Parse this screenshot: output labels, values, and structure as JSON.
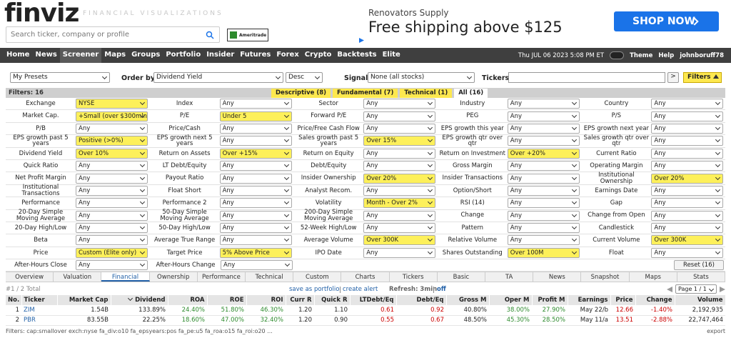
{
  "header": {
    "logo": "finviz",
    "tagline": "FINANCIAL VISUALIZATIONS",
    "search_placeholder": "Search ticker, company or profile",
    "badge": "Ameritrade"
  },
  "ad": {
    "advertiser": "Renovators Supply",
    "headline": "Free shipping above $125",
    "button": "SHOP NOW"
  },
  "nav": {
    "items": [
      {
        "label": "Home"
      },
      {
        "label": "News"
      },
      {
        "label": "Screener",
        "active": true
      },
      {
        "label": "Maps"
      },
      {
        "label": "Groups"
      },
      {
        "label": "Portfolio"
      },
      {
        "label": "Insider"
      },
      {
        "label": "Futures"
      },
      {
        "label": "Forex"
      },
      {
        "label": "Crypto"
      },
      {
        "label": "Backtests"
      },
      {
        "label": "Elite"
      }
    ],
    "datetime": "Thu JUL 06 2023 5:08 PM ET",
    "theme": "Theme",
    "help": "Help",
    "user": "johnboruff78"
  },
  "controls": {
    "presets": "My Presets",
    "order_by_label": "Order by",
    "order_by": "Dividend Yield",
    "direction": "Desc",
    "signal_label": "Signal",
    "signal": "None (all stocks)",
    "tickers_label": "Tickers",
    "go": ">",
    "filters_button": "Filters"
  },
  "filter_bar": {
    "count": "Filters: 16",
    "tabs": [
      {
        "label": "Descriptive (8)",
        "highlight": true
      },
      {
        "label": "Fundamental (7)",
        "highlight": true
      },
      {
        "label": "Technical (1)",
        "highlight": true
      },
      {
        "label": "All (16)",
        "selected": true
      }
    ]
  },
  "filters": {
    "rows": [
      [
        {
          "label": "Exchange",
          "value": "NYSE",
          "active": true
        },
        {
          "label": "Index",
          "value": "Any"
        },
        {
          "label": "Sector",
          "value": "Any"
        },
        {
          "label": "Industry",
          "value": "Any"
        },
        {
          "label": "Country",
          "value": "Any"
        }
      ],
      [
        {
          "label": "Market Cap.",
          "value": "+Small (over $300mln)",
          "active": true
        },
        {
          "label": "P/E",
          "value": "Under 5",
          "active": true
        },
        {
          "label": "Forward P/E",
          "value": "Any"
        },
        {
          "label": "PEG",
          "value": "Any"
        },
        {
          "label": "P/S",
          "value": "Any"
        }
      ],
      [
        {
          "label": "P/B",
          "value": "Any"
        },
        {
          "label": "Price/Cash",
          "value": "Any"
        },
        {
          "label": "Price/Free Cash Flow",
          "value": "Any"
        },
        {
          "label": "EPS growth this year",
          "value": "Any"
        },
        {
          "label": "EPS growth next year",
          "value": "Any"
        }
      ],
      [
        {
          "label": "EPS growth past 5 years",
          "value": "Positive (>0%)",
          "active": true
        },
        {
          "label": "EPS growth next 5 years",
          "value": "Any"
        },
        {
          "label": "Sales growth past 5 years",
          "value": "Over 15%",
          "active": true
        },
        {
          "label": "EPS growth qtr over qtr",
          "value": "Any"
        },
        {
          "label": "Sales growth qtr over qtr",
          "value": "Any"
        }
      ],
      [
        {
          "label": "Dividend Yield",
          "value": "Over 10%",
          "active": true
        },
        {
          "label": "Return on Assets",
          "value": "Over +15%",
          "active": true
        },
        {
          "label": "Return on Equity",
          "value": "Any"
        },
        {
          "label": "Return on Investment",
          "value": "Over +20%",
          "active": true
        },
        {
          "label": "Current Ratio",
          "value": "Any"
        }
      ],
      [
        {
          "label": "Quick Ratio",
          "value": "Any"
        },
        {
          "label": "LT Debt/Equity",
          "value": "Any"
        },
        {
          "label": "Debt/Equity",
          "value": "Any"
        },
        {
          "label": "Gross Margin",
          "value": "Any"
        },
        {
          "label": "Operating Margin",
          "value": "Any"
        }
      ],
      [
        {
          "label": "Net Profit Margin",
          "value": "Any"
        },
        {
          "label": "Payout Ratio",
          "value": "Any"
        },
        {
          "label": "Insider Ownership",
          "value": "Over 20%",
          "active": true
        },
        {
          "label": "Insider Transactions",
          "value": "Any"
        },
        {
          "label": "Institutional Ownership",
          "value": "Over 20%",
          "active": true
        }
      ],
      [
        {
          "label": "Institutional Transactions",
          "value": "Any"
        },
        {
          "label": "Float Short",
          "value": "Any"
        },
        {
          "label": "Analyst Recom.",
          "value": "Any"
        },
        {
          "label": "Option/Short",
          "value": "Any"
        },
        {
          "label": "Earnings Date",
          "value": "Any"
        }
      ],
      [
        {
          "label": "Performance",
          "value": "Any"
        },
        {
          "label": "Performance 2",
          "value": "Any"
        },
        {
          "label": "Volatility",
          "value": "Month - Over 2%",
          "active": true
        },
        {
          "label": "RSI (14)",
          "value": "Any"
        },
        {
          "label": "Gap",
          "value": "Any"
        }
      ],
      [
        {
          "label": "20-Day Simple Moving Average",
          "value": "Any"
        },
        {
          "label": "50-Day Simple Moving Average",
          "value": "Any"
        },
        {
          "label": "200-Day Simple Moving Average",
          "value": "Any"
        },
        {
          "label": "Change",
          "value": "Any"
        },
        {
          "label": "Change from Open",
          "value": "Any"
        }
      ],
      [
        {
          "label": "20-Day High/Low",
          "value": "Any"
        },
        {
          "label": "50-Day High/Low",
          "value": "Any"
        },
        {
          "label": "52-Week High/Low",
          "value": "Any"
        },
        {
          "label": "Pattern",
          "value": "Any"
        },
        {
          "label": "Candlestick",
          "value": "Any"
        }
      ],
      [
        {
          "label": "Beta",
          "value": "Any"
        },
        {
          "label": "Average True Range",
          "value": "Any"
        },
        {
          "label": "Average Volume",
          "value": "Over 300K",
          "active": true
        },
        {
          "label": "Relative Volume",
          "value": "Any"
        },
        {
          "label": "Current Volume",
          "value": "Over 300K",
          "active": true
        }
      ],
      [
        {
          "label": "Price",
          "value": "Custom (Elite only)",
          "active": true
        },
        {
          "label": "Target Price",
          "value": "5% Above Price",
          "active": true
        },
        {
          "label": "IPO Date",
          "value": "Any"
        },
        {
          "label": "Shares Outstanding",
          "value": "Over 100M",
          "active": true
        },
        {
          "label": "Float",
          "value": "Any"
        }
      ],
      [
        {
          "label": "After-Hours Close",
          "value": "Any"
        },
        {
          "label": "After-Hours Change",
          "value": "Any"
        }
      ]
    ],
    "reset": "Reset (16)"
  },
  "views": [
    {
      "label": "Overview"
    },
    {
      "label": "Valuation"
    },
    {
      "label": "Financial",
      "active": true
    },
    {
      "label": "Ownership"
    },
    {
      "label": "Performance"
    },
    {
      "label": "Technical"
    },
    {
      "label": "Custom"
    },
    {
      "label": "Charts"
    },
    {
      "label": "Tickers"
    },
    {
      "label": "Basic"
    },
    {
      "label": "TA"
    },
    {
      "label": "News"
    },
    {
      "label": "Snapshot"
    },
    {
      "label": "Maps"
    },
    {
      "label": "Stats"
    }
  ],
  "results": {
    "total": "#1 / 2 Total",
    "save": "save as portfolio",
    "create_alert": "create alert",
    "refresh": "Refresh: 3min",
    "off": "off",
    "page": "Page 1 / 1"
  },
  "table": {
    "sorted_column": 3,
    "columns": [
      {
        "label": "No."
      },
      {
        "label": "Ticker"
      },
      {
        "label": "Market Cap"
      },
      {
        "label": "Dividend"
      },
      {
        "label": "ROA",
        "color": "#2e8b2e"
      },
      {
        "label": "ROE",
        "color": "#2e8b2e"
      },
      {
        "label": "ROI",
        "color": "#2e8b2e"
      },
      {
        "label": "Curr R"
      },
      {
        "label": "Quick R"
      },
      {
        "label": "LTDebt/Eq",
        "color": "#cc0000"
      },
      {
        "label": "Debt/Eq",
        "color": "#cc0000"
      },
      {
        "label": "Gross M"
      },
      {
        "label": "Oper M",
        "color": "#2e8b2e"
      },
      {
        "label": "Profit M",
        "color": "#2e8b2e"
      },
      {
        "label": "Earnings"
      },
      {
        "label": "Price",
        "color": "#cc0000"
      },
      {
        "label": "Change",
        "color": "#cc0000"
      },
      {
        "label": "Volume"
      }
    ],
    "rows": [
      [
        "1",
        "ZIM",
        "1.54B",
        "133.89%",
        "24.40%",
        "51.80%",
        "46.30%",
        "1.20",
        "1.10",
        "0.61",
        "0.92",
        "40.80%",
        "38.00%",
        "27.90%",
        "May 22/b",
        "12.66",
        "-1.40%",
        "2,192,935"
      ],
      [
        "2",
        "PBR",
        "83.55B",
        "22.25%",
        "18.60%",
        "47.00%",
        "32.40%",
        "1.20",
        "0.90",
        "0.55",
        "0.67",
        "48.50%",
        "45.30%",
        "28.50%",
        "May 11/a",
        "13.51",
        "-2.88%",
        "22,747,464"
      ]
    ]
  },
  "footer": {
    "filters": "Filters: cap:smallover exch:nyse fa_div:o10 fa_epsyears:pos fa_pe:u5 fa_roa:o15 fa_roi:o20 ...",
    "export": "export"
  }
}
